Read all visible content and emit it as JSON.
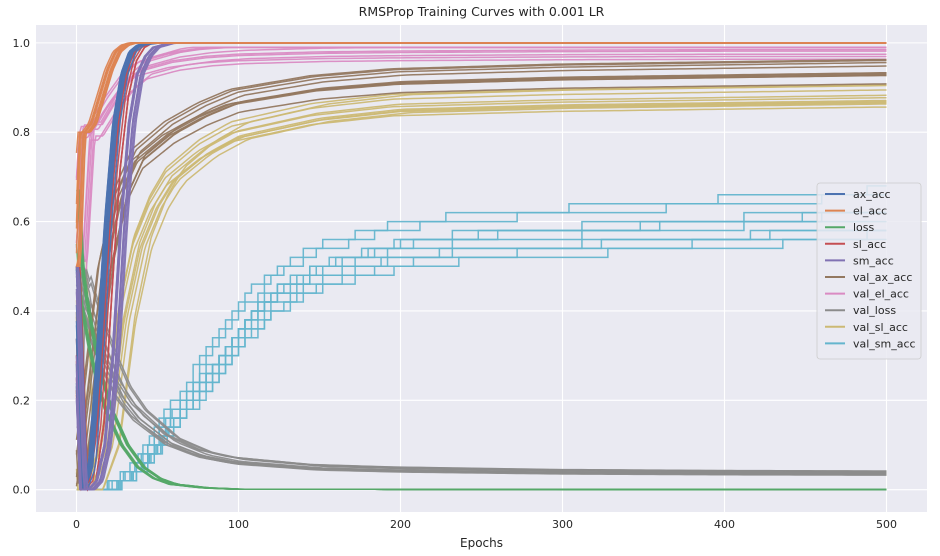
{
  "chart_data": {
    "type": "line",
    "title": "RMSProp Training Curves with 0.001 LR",
    "xlabel": "Epochs",
    "ylabel": "",
    "xlim": [
      -25,
      525
    ],
    "ylim": [
      -0.05,
      1.04
    ],
    "xticks": [
      0,
      100,
      200,
      300,
      400,
      500
    ],
    "yticks": [
      0.0,
      0.2,
      0.4,
      0.6,
      0.8,
      1.0
    ],
    "xtick_labels": [
      "0",
      "100",
      "200",
      "300",
      "400",
      "500"
    ],
    "ytick_labels": [
      "0.0",
      "0.2",
      "0.4",
      "0.6",
      "0.8",
      "1.0"
    ],
    "grid": true,
    "legend_position": "center-right",
    "runs_per_series": 10,
    "series": [
      {
        "name": "ax_acc",
        "color": "#4c72b0",
        "x": [
          0,
          5,
          10,
          15,
          20,
          25,
          30,
          35,
          40,
          50,
          500
        ],
        "y": [
          0.5,
          0.0,
          0.05,
          0.3,
          0.6,
          0.82,
          0.93,
          0.98,
          0.995,
          1.0,
          1.0
        ]
      },
      {
        "name": "el_acc",
        "color": "#dd8452",
        "x": [
          0,
          3,
          6,
          10,
          15,
          20,
          25,
          30,
          35,
          40,
          500
        ],
        "y": [
          0.5,
          0.8,
          0.8,
          0.82,
          0.88,
          0.94,
          0.98,
          0.995,
          1.0,
          1.0,
          1.0
        ]
      },
      {
        "name": "loss",
        "color": "#55a868",
        "x": [
          0,
          2,
          5,
          10,
          15,
          20,
          30,
          40,
          50,
          60,
          80,
          100,
          500
        ],
        "y": [
          0.67,
          0.5,
          0.42,
          0.32,
          0.24,
          0.18,
          0.1,
          0.05,
          0.025,
          0.012,
          0.004,
          0.001,
          0.0
        ]
      },
      {
        "name": "sl_acc",
        "color": "#c44e52",
        "x": [
          0,
          5,
          10,
          15,
          20,
          25,
          30,
          35,
          40,
          45,
          500
        ],
        "y": [
          0.5,
          0.0,
          0.02,
          0.15,
          0.45,
          0.72,
          0.88,
          0.96,
          0.99,
          1.0,
          1.0
        ]
      },
      {
        "name": "sm_acc",
        "color": "#8172b3",
        "x": [
          0,
          5,
          10,
          15,
          20,
          25,
          30,
          35,
          40,
          45,
          50,
          60,
          500
        ],
        "y": [
          0.5,
          0.0,
          0.0,
          0.02,
          0.1,
          0.3,
          0.6,
          0.82,
          0.93,
          0.97,
          0.99,
          1.0,
          1.0
        ]
      },
      {
        "name": "val_ax_acc",
        "color": "#937860",
        "x": [
          0,
          3,
          10,
          20,
          30,
          40,
          60,
          80,
          100,
          150,
          200,
          300,
          400,
          500
        ],
        "y": [
          0.5,
          0.0,
          0.2,
          0.5,
          0.66,
          0.74,
          0.8,
          0.84,
          0.87,
          0.9,
          0.915,
          0.925,
          0.93,
          0.935
        ]
      },
      {
        "name": "val_el_acc",
        "color": "#da8bc3",
        "x": [
          0,
          5,
          10,
          20,
          30,
          40,
          60,
          80,
          100,
          150,
          200,
          300,
          400,
          500
        ],
        "y": [
          0.5,
          0.8,
          0.8,
          0.86,
          0.91,
          0.94,
          0.96,
          0.97,
          0.975,
          0.98,
          0.982,
          0.984,
          0.985,
          0.985
        ]
      },
      {
        "name": "val_loss",
        "color": "#8c8c8c",
        "x": [
          0,
          2,
          5,
          10,
          20,
          30,
          40,
          60,
          80,
          100,
          150,
          200,
          300,
          400,
          500
        ],
        "y": [
          0.14,
          0.5,
          0.46,
          0.4,
          0.3,
          0.22,
          0.17,
          0.11,
          0.08,
          0.065,
          0.05,
          0.045,
          0.04,
          0.038,
          0.037
        ]
      },
      {
        "name": "val_sl_acc",
        "color": "#ccb974",
        "x": [
          0,
          5,
          10,
          20,
          30,
          40,
          50,
          60,
          80,
          100,
          150,
          200,
          300,
          400,
          500
        ],
        "y": [
          0.5,
          0.0,
          0.0,
          0.1,
          0.38,
          0.55,
          0.64,
          0.7,
          0.76,
          0.8,
          0.84,
          0.86,
          0.87,
          0.875,
          0.88
        ]
      },
      {
        "name": "val_sm_acc",
        "color": "#64b5cd",
        "x": [
          0,
          10,
          20,
          30,
          40,
          50,
          60,
          80,
          100,
          120,
          150,
          200,
          250,
          300,
          400,
          500
        ],
        "y": [
          0.0,
          0.0,
          0.0,
          0.02,
          0.05,
          0.1,
          0.16,
          0.26,
          0.36,
          0.44,
          0.5,
          0.55,
          0.57,
          0.58,
          0.6,
          0.62
        ]
      }
    ]
  }
}
